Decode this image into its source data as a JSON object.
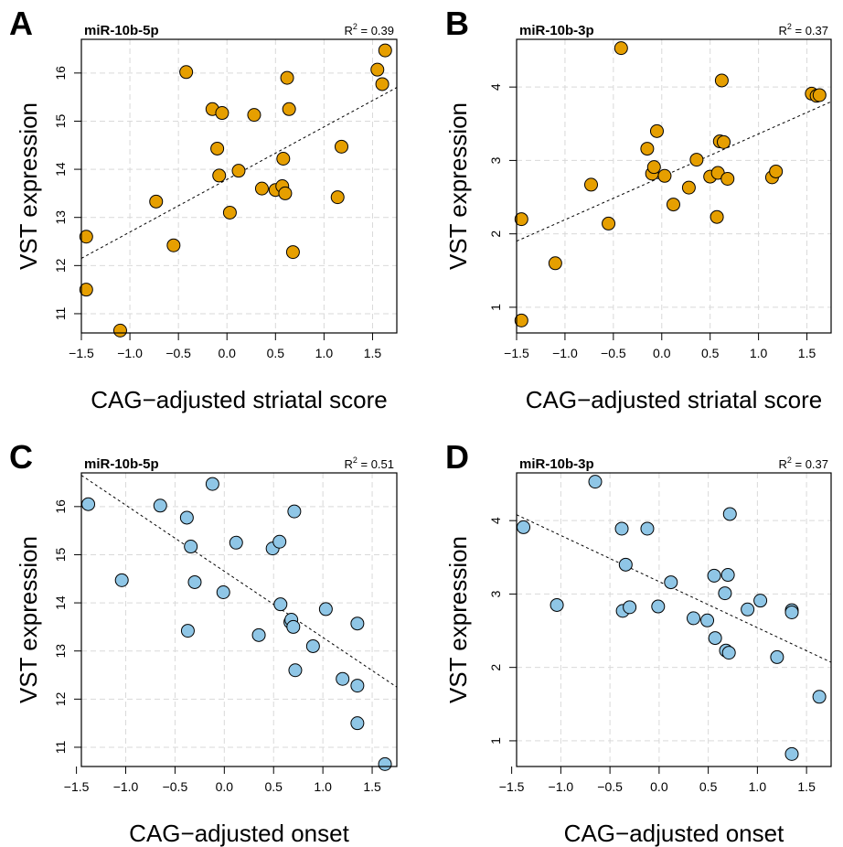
{
  "chart_data": [
    {
      "type": "scatter",
      "panel": "A",
      "title": "miR-10b-5p",
      "r2_label": "R",
      "r2_value": " = 0.39",
      "xlabel": "CAG−adjusted striatal score",
      "ylabel": "VST expression",
      "xlim": [
        -1.5,
        1.75
      ],
      "ylim": [
        10.6,
        16.7
      ],
      "xticks": [
        -1.5,
        -1.0,
        -0.5,
        0.0,
        0.5,
        1.0,
        1.5
      ],
      "xtick_labels": [
        "−1.5",
        "−1.0",
        "−0.5",
        "0.0",
        "0.5",
        "1.0",
        "1.5"
      ],
      "yticks": [
        11,
        12,
        13,
        14,
        15,
        16
      ],
      "ytick_labels": [
        "11",
        "12",
        "13",
        "14",
        "15",
        "16"
      ],
      "color": "#e69f00",
      "trend": [
        [
          -1.5,
          12.15
        ],
        [
          1.75,
          15.7
        ]
      ],
      "x": [
        -1.45,
        -1.45,
        -1.1,
        -0.73,
        -0.55,
        -0.42,
        -0.15,
        -0.1,
        -0.08,
        -0.05,
        0.03,
        0.12,
        0.28,
        0.36,
        0.5,
        0.57,
        0.58,
        0.6,
        0.62,
        0.64,
        0.68,
        1.14,
        1.18,
        1.55,
        1.6,
        1.63
      ],
      "y": [
        11.5,
        12.6,
        10.65,
        13.33,
        12.42,
        16.02,
        15.25,
        14.43,
        13.87,
        15.17,
        13.1,
        13.97,
        15.13,
        13.6,
        13.57,
        13.65,
        14.22,
        13.5,
        15.9,
        15.25,
        12.28,
        13.42,
        14.47,
        16.07,
        15.77,
        16.47
      ]
    },
    {
      "type": "scatter",
      "panel": "B",
      "title": "miR-10b-3p",
      "r2_label": "R",
      "r2_value": " = 0.37",
      "xlabel": "CAG−adjusted striatal score",
      "ylabel": "VST expression",
      "xlim": [
        -1.5,
        1.75
      ],
      "ylim": [
        0.65,
        4.65
      ],
      "xticks": [
        -1.5,
        -1.0,
        -0.5,
        0.0,
        0.5,
        1.0,
        1.5
      ],
      "xtick_labels": [
        "−1.5",
        "−1.0",
        "−0.5",
        "0.0",
        "0.5",
        "1.0",
        "1.5"
      ],
      "yticks": [
        1,
        2,
        3,
        4
      ],
      "ytick_labels": [
        "1",
        "2",
        "3",
        "4"
      ],
      "color": "#e69f00",
      "trend": [
        [
          -1.5,
          1.9
        ],
        [
          1.75,
          3.8
        ]
      ],
      "x": [
        -1.45,
        -1.45,
        -1.1,
        -0.73,
        -0.55,
        -0.42,
        -0.15,
        -0.1,
        -0.08,
        -0.05,
        0.03,
        0.12,
        0.28,
        0.36,
        0.5,
        0.57,
        0.58,
        0.6,
        0.62,
        0.64,
        0.68,
        1.14,
        1.18,
        1.55,
        1.6,
        1.63
      ],
      "y": [
        0.82,
        2.2,
        1.6,
        2.67,
        2.14,
        4.53,
        3.16,
        2.82,
        2.91,
        3.4,
        2.79,
        2.4,
        2.63,
        3.01,
        2.78,
        2.23,
        2.83,
        3.26,
        4.09,
        3.25,
        2.75,
        2.77,
        2.85,
        3.91,
        3.88,
        3.89
      ]
    },
    {
      "type": "scatter",
      "panel": "C",
      "title": "miR-10b-5p",
      "r2_label": "R",
      "r2_value": " = 0.51",
      "xlabel": "CAG−adjusted onset",
      "ylabel": "VST expression",
      "xlim": [
        -1.45,
        1.75
      ],
      "ylim": [
        10.6,
        16.7
      ],
      "xticks": [
        -1.5,
        -1.0,
        -0.5,
        0.0,
        0.5,
        1.0,
        1.5
      ],
      "xtick_labels": [
        "−1.5",
        "−1.0",
        "−0.5",
        "0.0",
        "0.5",
        "1.0",
        "1.5"
      ],
      "yticks": [
        11,
        12,
        13,
        14,
        15,
        16
      ],
      "ytick_labels": [
        "11",
        "12",
        "13",
        "14",
        "15",
        "16"
      ],
      "color": "#8fc6e6",
      "trend": [
        [
          -1.45,
          16.65
        ],
        [
          1.75,
          12.25
        ]
      ],
      "x": [
        -1.38,
        -1.04,
        -0.65,
        -0.38,
        -0.34,
        -0.3,
        -0.37,
        -0.12,
        -0.01,
        0.12,
        0.35,
        0.49,
        0.56,
        0.57,
        0.67,
        0.68,
        0.7,
        0.72,
        0.71,
        0.9,
        1.03,
        1.2,
        1.35,
        1.35,
        1.35,
        1.63
      ],
      "y": [
        16.05,
        14.47,
        16.02,
        15.77,
        15.17,
        14.43,
        13.42,
        16.47,
        14.22,
        15.25,
        13.33,
        15.13,
        15.27,
        13.97,
        13.6,
        13.65,
        13.5,
        12.6,
        15.9,
        13.1,
        13.87,
        12.42,
        13.57,
        12.28,
        11.5,
        10.65
      ]
    },
    {
      "type": "scatter",
      "panel": "D",
      "title": "miR-10b-3p",
      "r2_label": "R",
      "r2_value": " = 0.37",
      "xlabel": "CAG−adjusted onset",
      "ylabel": "VST expression",
      "xlim": [
        -1.45,
        1.75
      ],
      "ylim": [
        0.65,
        4.65
      ],
      "xticks": [
        -1.5,
        -1.0,
        -0.5,
        0.0,
        0.5,
        1.0,
        1.5
      ],
      "xtick_labels": [
        "−1.5",
        "−1.0",
        "−0.5",
        "0.0",
        "0.5",
        "1.0",
        "1.5"
      ],
      "yticks": [
        1,
        2,
        3,
        4
      ],
      "ytick_labels": [
        "1",
        "2",
        "3",
        "4"
      ],
      "color": "#8fc6e6",
      "trend": [
        [
          -1.45,
          4.08
        ],
        [
          1.75,
          2.07
        ]
      ],
      "x": [
        -1.38,
        -1.04,
        -0.65,
        -0.38,
        -0.37,
        -0.34,
        -0.3,
        -0.12,
        -0.01,
        0.12,
        0.35,
        0.49,
        0.56,
        0.57,
        0.67,
        0.68,
        0.7,
        0.71,
        0.72,
        0.9,
        1.03,
        1.2,
        1.35,
        1.35,
        1.35,
        1.63
      ],
      "y": [
        3.91,
        2.85,
        4.53,
        3.89,
        2.77,
        3.4,
        2.82,
        3.89,
        2.83,
        3.16,
        2.67,
        2.64,
        3.25,
        2.4,
        3.01,
        2.23,
        3.26,
        2.2,
        4.09,
        2.79,
        2.91,
        2.14,
        2.78,
        2.75,
        0.82,
        1.6
      ]
    }
  ]
}
